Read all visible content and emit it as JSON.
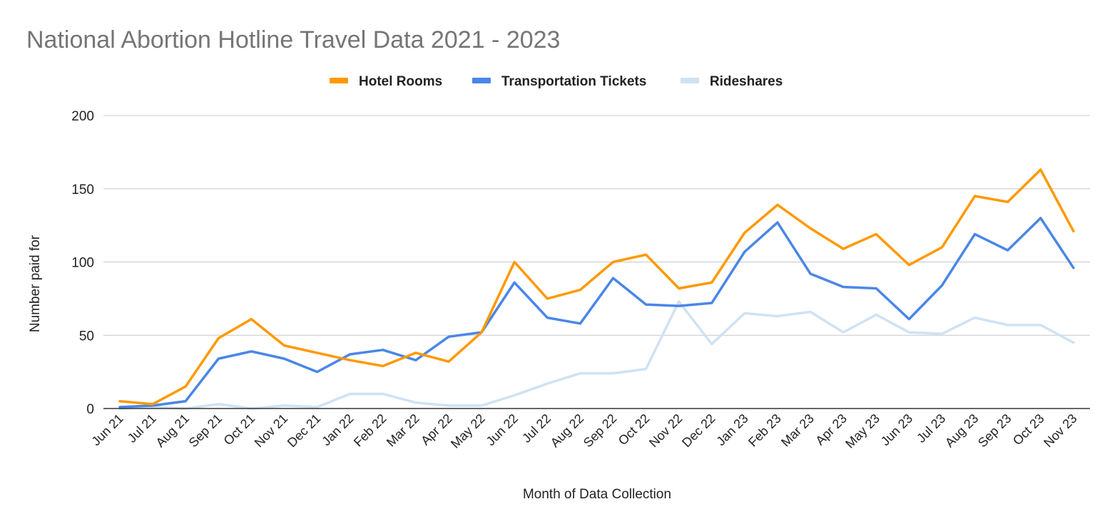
{
  "chart_data": {
    "type": "line",
    "title": "National Abortion Hotline Travel Data 2021 - 2023",
    "xlabel": "Month of Data Collection",
    "ylabel": "Number paid for",
    "ylim": [
      0,
      200
    ],
    "yticks": [
      "0",
      "50",
      "100",
      "150",
      "200"
    ],
    "grid": true,
    "legend_position": "top",
    "categories": [
      "Jun 21",
      "Jul 21",
      "Aug 21",
      "Sep 21",
      "Oct 21",
      "Nov 21",
      "Dec 21",
      "Jan 22",
      "Feb 22",
      "Mar 22",
      "Apr 22",
      "May 22",
      "Jun 22",
      "Jul 22",
      "Aug 22",
      "Sep 22",
      "Oct 22",
      "Nov 22",
      "Dec 22",
      "Jan 23",
      "Feb 23",
      "Mar 23",
      "Apr 23",
      "May 23",
      "Jun 23",
      "Jul 23",
      "Aug 23",
      "Sep 23",
      "Oct 23",
      "Nov 23"
    ],
    "series": [
      {
        "name": "Hotel Rooms",
        "color": "#ff9900",
        "values": [
          5,
          3,
          15,
          48,
          61,
          43,
          38,
          33,
          29,
          38,
          32,
          52,
          100,
          75,
          81,
          100,
          105,
          82,
          86,
          120,
          139,
          123,
          109,
          119,
          98,
          110,
          145,
          141,
          163,
          121
        ]
      },
      {
        "name": "Transportation Tickets",
        "color": "#4a86e8",
        "values": [
          1,
          2,
          5,
          34,
          39,
          34,
          25,
          37,
          40,
          33,
          49,
          52,
          86,
          62,
          58,
          89,
          71,
          70,
          72,
          107,
          127,
          92,
          83,
          82,
          61,
          84,
          119,
          108,
          130,
          96
        ]
      },
      {
        "name": "Rideshares",
        "color": "#cfe2f3",
        "values": [
          0,
          1,
          0,
          3,
          0,
          2,
          1,
          10,
          10,
          4,
          2,
          2,
          9,
          17,
          24,
          24,
          27,
          73,
          44,
          65,
          63,
          66,
          52,
          64,
          52,
          51,
          62,
          57,
          57,
          45
        ]
      }
    ]
  }
}
